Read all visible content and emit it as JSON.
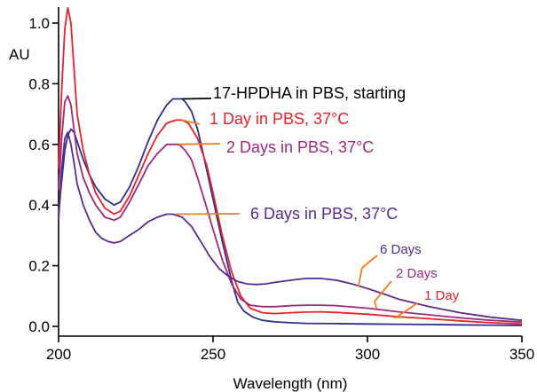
{
  "chart_data": {
    "type": "line",
    "xlabel": "Wavelength (nm)",
    "ylabel": "AU",
    "xlim": [
      200,
      350
    ],
    "ylim": [
      -0.02,
      1.05
    ],
    "x_ticks": [
      200,
      250,
      300,
      350
    ],
    "x_tick_labels": [
      "200",
      "250",
      "300",
      "350"
    ],
    "y_ticks": [
      0.0,
      0.2,
      0.4,
      0.6,
      0.8,
      1.0
    ],
    "y_tick_labels": [
      "0.0",
      "0.2",
      "0.4",
      "0.6",
      "0.8",
      "1.0"
    ],
    "grid": false,
    "series": [
      {
        "color": "#2b2f8f",
        "x": [
          200,
          201,
          202,
          203,
          204,
          205,
          206,
          208,
          210,
          212,
          215,
          218,
          220,
          223,
          226,
          229,
          232,
          235,
          237,
          239,
          240,
          241,
          243,
          245,
          247,
          250,
          253,
          256,
          258,
          260,
          263,
          266,
          270,
          275,
          280,
          290,
          300,
          310,
          320,
          330,
          340,
          350
        ],
        "y": [
          0.37,
          0.48,
          0.58,
          0.63,
          0.65,
          0.64,
          0.61,
          0.55,
          0.5,
          0.46,
          0.42,
          0.4,
          0.41,
          0.46,
          0.53,
          0.61,
          0.68,
          0.73,
          0.75,
          0.75,
          0.75,
          0.74,
          0.71,
          0.65,
          0.56,
          0.42,
          0.28,
          0.15,
          0.08,
          0.05,
          0.03,
          0.02,
          0.015,
          0.012,
          0.01,
          0.009,
          0.008,
          0.007,
          0.006,
          0.005,
          0.004,
          0.003
        ]
      },
      {
        "color": "#e8202a",
        "x": [
          200,
          201,
          202,
          203,
          204,
          205,
          206,
          208,
          210,
          212,
          215,
          218,
          220,
          223,
          226,
          229,
          232,
          235,
          238,
          240,
          242,
          245,
          248,
          250,
          253,
          256,
          259,
          262,
          266,
          270,
          275,
          280,
          285,
          290,
          295,
          300,
          305,
          310,
          320,
          330,
          340,
          350
        ],
        "y": [
          0.52,
          0.78,
          0.98,
          1.05,
          1.0,
          0.85,
          0.7,
          0.58,
          0.5,
          0.44,
          0.39,
          0.37,
          0.38,
          0.43,
          0.5,
          0.57,
          0.63,
          0.67,
          0.68,
          0.68,
          0.67,
          0.62,
          0.53,
          0.44,
          0.3,
          0.18,
          0.1,
          0.06,
          0.045,
          0.042,
          0.045,
          0.047,
          0.048,
          0.046,
          0.043,
          0.04,
          0.036,
          0.032,
          0.025,
          0.018,
          0.012,
          0.008
        ]
      },
      {
        "color": "#a0287c",
        "x": [
          200,
          201,
          202,
          203,
          204,
          205,
          206,
          208,
          210,
          212,
          215,
          218,
          220,
          223,
          226,
          229,
          232,
          235,
          237,
          239,
          241,
          243,
          245,
          248,
          250,
          253,
          256,
          259,
          262,
          266,
          270,
          275,
          280,
          285,
          290,
          295,
          300,
          305,
          310,
          320,
          330,
          340,
          350
        ],
        "y": [
          0.45,
          0.62,
          0.74,
          0.76,
          0.73,
          0.65,
          0.57,
          0.49,
          0.44,
          0.4,
          0.36,
          0.35,
          0.36,
          0.41,
          0.47,
          0.53,
          0.57,
          0.6,
          0.6,
          0.6,
          0.58,
          0.55,
          0.49,
          0.39,
          0.32,
          0.22,
          0.14,
          0.09,
          0.07,
          0.065,
          0.065,
          0.068,
          0.07,
          0.07,
          0.068,
          0.064,
          0.06,
          0.054,
          0.048,
          0.038,
          0.028,
          0.02,
          0.014
        ]
      },
      {
        "color": "#5a2a8c",
        "x": [
          200,
          201,
          202,
          203,
          204,
          205,
          206,
          208,
          210,
          212,
          214,
          216,
          218,
          220,
          223,
          226,
          229,
          232,
          235,
          237,
          240,
          243,
          246,
          249,
          252,
          255,
          258,
          261,
          264,
          267,
          270,
          275,
          280,
          285,
          290,
          295,
          300,
          305,
          310,
          320,
          330,
          340,
          350
        ],
        "y": [
          0.35,
          0.52,
          0.62,
          0.64,
          0.6,
          0.54,
          0.47,
          0.4,
          0.35,
          0.31,
          0.29,
          0.28,
          0.275,
          0.28,
          0.3,
          0.32,
          0.345,
          0.36,
          0.37,
          0.37,
          0.36,
          0.33,
          0.28,
          0.23,
          0.19,
          0.165,
          0.148,
          0.14,
          0.138,
          0.14,
          0.145,
          0.152,
          0.158,
          0.158,
          0.152,
          0.14,
          0.125,
          0.108,
          0.09,
          0.065,
          0.045,
          0.03,
          0.02
        ]
      }
    ],
    "annotations": [
      {
        "text": "17-HPDHA in PBS, starting",
        "color": "#000000",
        "point_x": 240,
        "point_y": 0.75
      },
      {
        "text": "1 Day in PBS, 37°C",
        "color": "#e8202a",
        "point_x": 240,
        "point_y": 0.68
      },
      {
        "text": "2 Days in PBS, 37°C",
        "color": "#a0287c",
        "point_x": 239,
        "point_y": 0.6
      },
      {
        "text": "6 Days in PBS, 37°C",
        "color": "#5a2a8c",
        "point_x": 238,
        "point_y": 0.37
      },
      {
        "text": "6 Days",
        "color": "#5a2a8c",
        "point_x": 297,
        "point_y": 0.13
      },
      {
        "text": "2 Days",
        "color": "#a0287c",
        "point_x": 303,
        "point_y": 0.058
      },
      {
        "text": "1 Day",
        "color": "#e8202a",
        "point_x": 311,
        "point_y": 0.03
      }
    ],
    "annotation_line_color": "#f47b20"
  }
}
